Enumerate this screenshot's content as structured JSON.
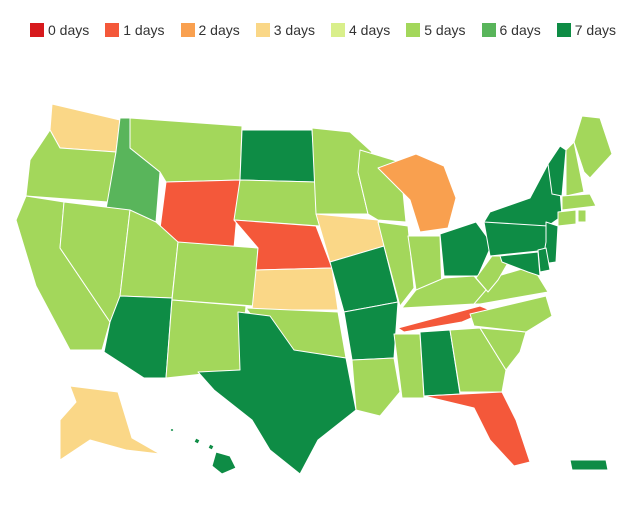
{
  "legend": [
    {
      "label": "0 days",
      "color": "#d7191c"
    },
    {
      "label": "1 days",
      "color": "#f4583a"
    },
    {
      "label": "2 days",
      "color": "#f9a04f"
    },
    {
      "label": "3 days",
      "color": "#fad787"
    },
    {
      "label": "4 days",
      "color": "#d9ef8b"
    },
    {
      "label": "5 days",
      "color": "#a3d75b"
    },
    {
      "label": "6 days",
      "color": "#59b55b"
    },
    {
      "label": "7 days",
      "color": "#0e8c45"
    }
  ],
  "states": {
    "WA": 3,
    "OR": 5,
    "CA": 5,
    "ID": 6,
    "NV": 5,
    "MT": 5,
    "WY": 1,
    "UT": 5,
    "AZ": 7,
    "CO": 5,
    "NM": 5,
    "ND": 7,
    "SD": 5,
    "NE": 1,
    "KS": 3,
    "OK": 5,
    "TX": 7,
    "MN": 5,
    "IA": 3,
    "MO": 7,
    "AR": 7,
    "LA": 5,
    "WI": 5,
    "IL": 5,
    "MI": 2,
    "IN": 5,
    "OH": 7,
    "KY": 5,
    "TN": 1,
    "MS": 5,
    "AL": 7,
    "GA": 5,
    "FL": 1,
    "SC": 5,
    "NC": 5,
    "VA": 5,
    "WV": 5,
    "PA": 7,
    "NY": 7,
    "VT": 7,
    "NH": 5,
    "ME": 5,
    "MA": 5,
    "RI": 5,
    "CT": 5,
    "NJ": 7,
    "DE": 7,
    "MD": 7,
    "AK": 3,
    "HI": 7,
    "PR": 7
  }
}
